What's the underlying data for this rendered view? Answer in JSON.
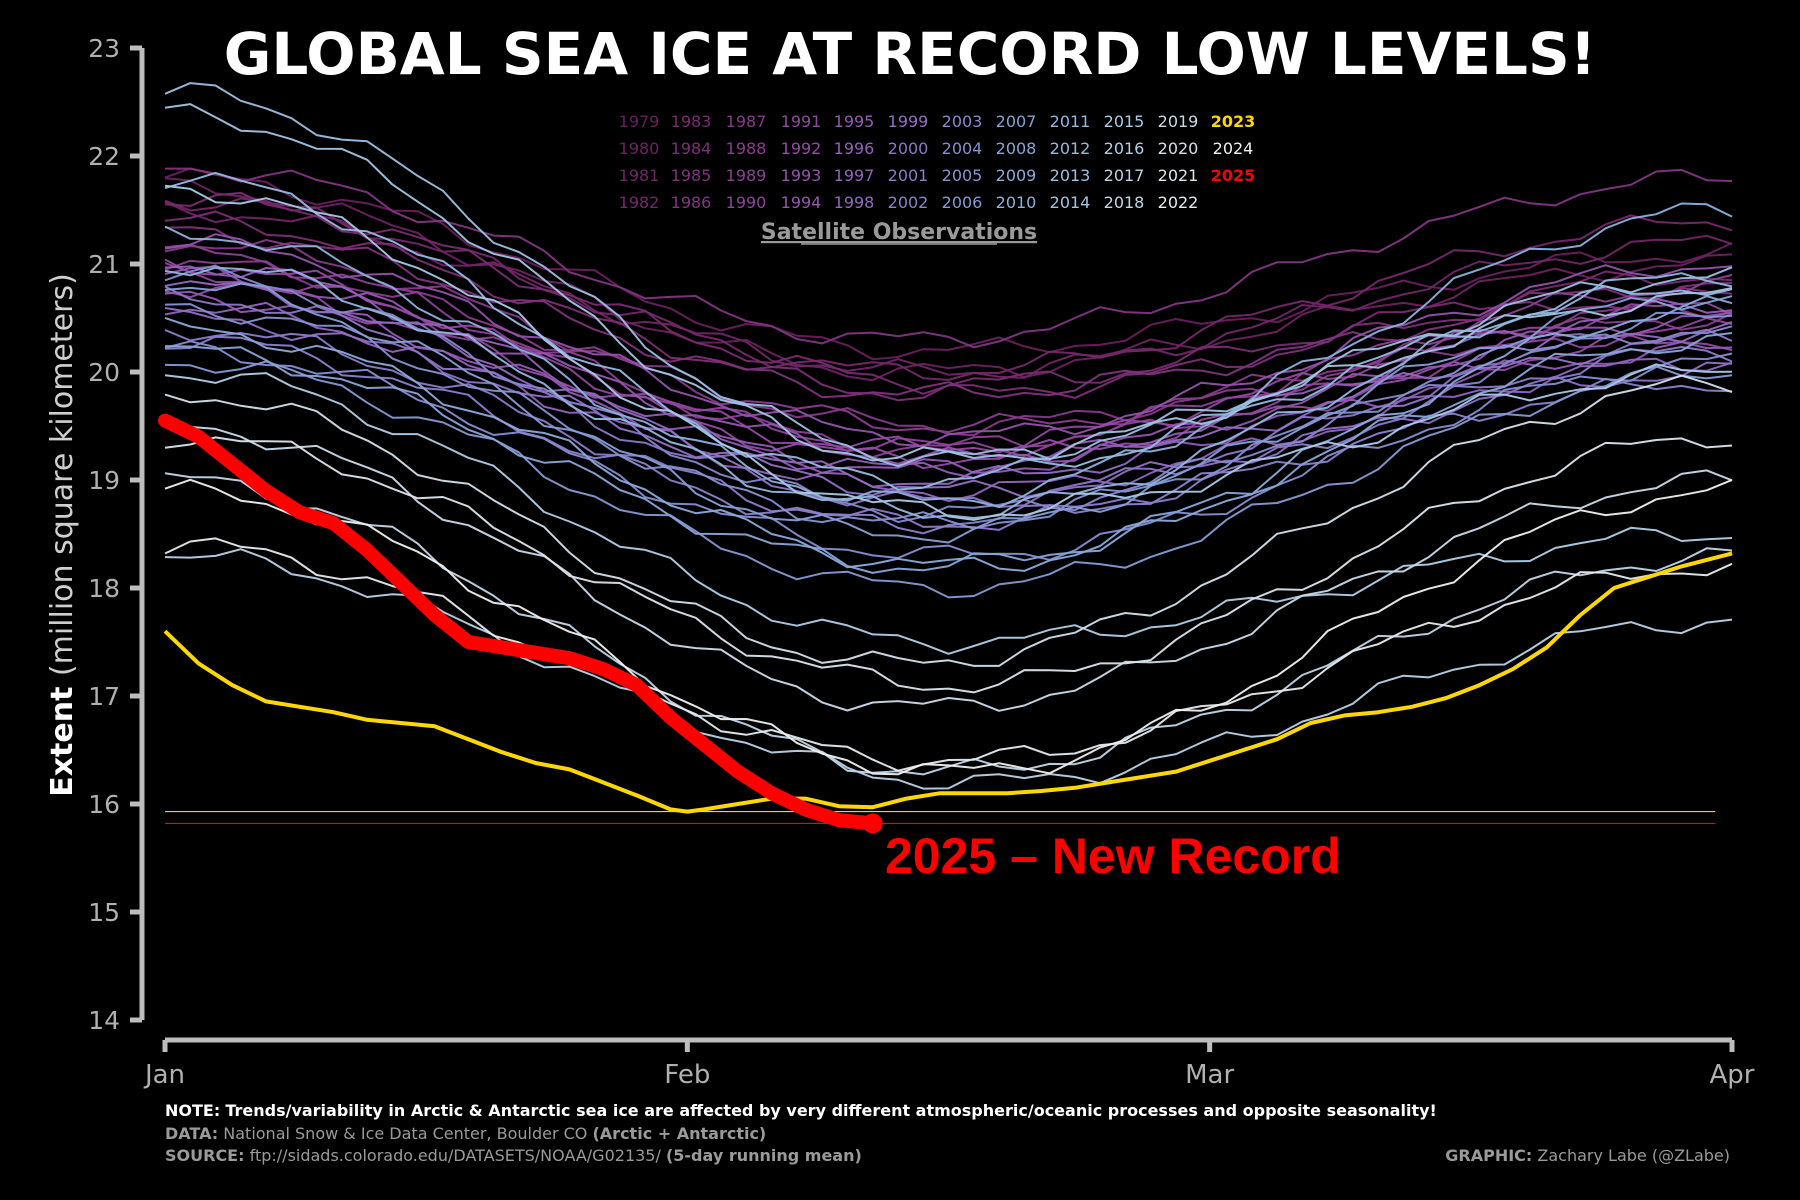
{
  "title": "GLOBAL SEA ICE AT RECORD LOW LEVELS!",
  "chart_data": {
    "type": "line",
    "title": "GLOBAL SEA ICE AT RECORD LOW LEVELS!",
    "ylabel_bold": "Extent",
    "ylabel_rest": "(million square kilometers)",
    "ylim": [
      14,
      23
    ],
    "yticks": [
      14,
      15,
      16,
      17,
      18,
      19,
      20,
      21,
      22,
      23
    ],
    "x_range_days": [
      0,
      90
    ],
    "x_ticks": [
      {
        "label": "Jan",
        "day": 0
      },
      {
        "label": "Feb",
        "day": 31
      },
      {
        "label": "Mar",
        "day": 62
      },
      {
        "label": "Apr",
        "day": 93
      }
    ],
    "legend_title": "Satellite Observations",
    "legend_placement": "top-center",
    "annotation": "2025 – New Record",
    "reference_lines": [
      {
        "y": 15.93,
        "color": "#FFD700"
      },
      {
        "y": 15.82,
        "color": "#FF0000"
      }
    ],
    "grid": false,
    "series_2025": {
      "name": "2025",
      "color": "#FF0000",
      "x": [
        0,
        2,
        4,
        6,
        8,
        10,
        12,
        14,
        16,
        18,
        20,
        22,
        24,
        26,
        28,
        30,
        32,
        34,
        36,
        38,
        40,
        42
      ],
      "y": [
        19.55,
        19.4,
        19.15,
        18.9,
        18.7,
        18.6,
        18.35,
        18.05,
        17.75,
        17.5,
        17.45,
        17.4,
        17.35,
        17.25,
        17.1,
        16.8,
        16.55,
        16.3,
        16.1,
        15.95,
        15.85,
        15.82
      ]
    },
    "series_2023": {
      "name": "2023",
      "color": "#FFD700",
      "x": [
        0,
        2,
        4,
        6,
        8,
        10,
        12,
        14,
        16,
        18,
        20,
        22,
        24,
        26,
        28,
        30,
        31,
        32,
        34,
        36,
        38,
        40,
        42,
        44,
        46,
        48,
        50,
        52,
        54,
        56,
        58,
        60,
        62,
        64,
        66,
        68,
        70,
        72,
        74,
        76,
        78,
        80,
        82,
        84,
        86,
        88,
        90,
        93
      ],
      "y": [
        17.6,
        17.3,
        17.1,
        16.95,
        16.9,
        16.85,
        16.78,
        16.75,
        16.72,
        16.6,
        16.48,
        16.38,
        16.32,
        16.2,
        16.08,
        15.95,
        15.93,
        15.95,
        16.0,
        16.05,
        16.05,
        15.98,
        15.97,
        16.05,
        16.1,
        16.1,
        16.1,
        16.12,
        16.15,
        16.2,
        16.25,
        16.3,
        16.4,
        16.5,
        16.6,
        16.75,
        16.82,
        16.85,
        16.9,
        16.98,
        17.1,
        17.25,
        17.45,
        17.75,
        18.0,
        18.1,
        18.2,
        18.32
      ]
    },
    "years": [
      {
        "year": "1979",
        "color": "#6a1f5e",
        "start": 21.8,
        "dip": 1.6,
        "min_day": 45,
        "end": 21.1
      },
      {
        "year": "1980",
        "color": "#6e2262",
        "start": 21.7,
        "dip": 1.7,
        "min_day": 44,
        "end": 21.0
      },
      {
        "year": "1981",
        "color": "#722567",
        "start": 21.5,
        "dip": 1.5,
        "min_day": 46,
        "end": 21.2
      },
      {
        "year": "1982",
        "color": "#76286c",
        "start": 21.6,
        "dip": 1.6,
        "min_day": 45,
        "end": 21.4
      },
      {
        "year": "1983",
        "color": "#7a2b72",
        "start": 21.6,
        "dip": 1.7,
        "min_day": 47,
        "end": 20.9
      },
      {
        "year": "1984",
        "color": "#7d2e78",
        "start": 21.4,
        "dip": 1.6,
        "min_day": 46,
        "end": 20.8
      },
      {
        "year": "1985",
        "color": "#81327e",
        "start": 21.3,
        "dip": 1.5,
        "min_day": 45,
        "end": 20.7
      },
      {
        "year": "1986",
        "color": "#843584",
        "start": 21.9,
        "dip": 1.6,
        "min_day": 44,
        "end": 21.8
      },
      {
        "year": "1987",
        "color": "#88398a",
        "start": 21.2,
        "dip": 1.7,
        "min_day": 46,
        "end": 20.6
      },
      {
        "year": "1988",
        "color": "#8b3c90",
        "start": 21.0,
        "dip": 1.5,
        "min_day": 47,
        "end": 20.5
      },
      {
        "year": "1989",
        "color": "#8e4096",
        "start": 21.1,
        "dip": 1.8,
        "min_day": 45,
        "end": 20.8
      },
      {
        "year": "1990",
        "color": "#90449c",
        "start": 20.9,
        "dip": 1.6,
        "min_day": 46,
        "end": 20.4
      },
      {
        "year": "1991",
        "color": "#9348a2",
        "start": 21.0,
        "dip": 1.7,
        "min_day": 44,
        "end": 20.6
      },
      {
        "year": "1992",
        "color": "#944ca7",
        "start": 20.8,
        "dip": 1.6,
        "min_day": 45,
        "end": 20.3
      },
      {
        "year": "1993",
        "color": "#9551ac",
        "start": 21.2,
        "dip": 1.8,
        "min_day": 46,
        "end": 21.0
      },
      {
        "year": "1994",
        "color": "#9555b1",
        "start": 20.9,
        "dip": 1.7,
        "min_day": 47,
        "end": 20.5
      },
      {
        "year": "1995",
        "color": "#955ab6",
        "start": 20.7,
        "dip": 1.6,
        "min_day": 45,
        "end": 20.2
      },
      {
        "year": "1996",
        "color": "#955fba",
        "start": 21.0,
        "dip": 1.9,
        "min_day": 44,
        "end": 20.6
      },
      {
        "year": "1997",
        "color": "#9464be",
        "start": 20.6,
        "dip": 1.7,
        "min_day": 46,
        "end": 20.1
      },
      {
        "year": "1998",
        "color": "#926ac2",
        "start": 20.8,
        "dip": 1.8,
        "min_day": 45,
        "end": 20.4
      },
      {
        "year": "1999",
        "color": "#9170c5",
        "start": 20.5,
        "dip": 1.6,
        "min_day": 47,
        "end": 20.0
      },
      {
        "year": "2000",
        "color": "#8f76c8",
        "start": 20.7,
        "dip": 1.9,
        "min_day": 45,
        "end": 20.3
      },
      {
        "year": "2001",
        "color": "#8d7ccb",
        "start": 20.4,
        "dip": 1.8,
        "min_day": 46,
        "end": 20.2
      },
      {
        "year": "2002",
        "color": "#8b82cd",
        "start": 20.3,
        "dip": 1.7,
        "min_day": 44,
        "end": 19.9
      },
      {
        "year": "2003",
        "color": "#8988cf",
        "start": 20.9,
        "dip": 2.2,
        "min_day": 46,
        "end": 20.4
      },
      {
        "year": "2004",
        "color": "#878ed1",
        "start": 20.2,
        "dip": 1.9,
        "min_day": 47,
        "end": 20.1
      },
      {
        "year": "2005",
        "color": "#8694d3",
        "start": 20.6,
        "dip": 2.0,
        "min_day": 45,
        "end": 20.5
      },
      {
        "year": "2006",
        "color": "#869ad5",
        "start": 20.1,
        "dip": 2.1,
        "min_day": 46,
        "end": 20.0
      },
      {
        "year": "2007",
        "color": "#86a0d7",
        "start": 20.8,
        "dip": 2.3,
        "min_day": 44,
        "end": 20.7
      },
      {
        "year": "2008",
        "color": "#88a6d9",
        "start": 20.2,
        "dip": 2.0,
        "min_day": 45,
        "end": 20.3
      },
      {
        "year": "2009",
        "color": "#8aabdb",
        "start": 20.4,
        "dip": 2.2,
        "min_day": 47,
        "end": 20.6
      },
      {
        "year": "2010",
        "color": "#8db1dd",
        "start": 21.3,
        "dip": 2.5,
        "min_day": 45,
        "end": 21.5
      },
      {
        "year": "2011",
        "color": "#91b6df",
        "start": 21.0,
        "dip": 2.3,
        "min_day": 46,
        "end": 20.9
      },
      {
        "year": "2012",
        "color": "#96bbe1",
        "start": 21.8,
        "dip": 2.8,
        "min_day": 44,
        "end": 20.8
      },
      {
        "year": "2013",
        "color": "#9bc0e3",
        "start": 22.6,
        "dip": 3.4,
        "min_day": 46,
        "end": 20.9
      },
      {
        "year": "2014",
        "color": "#a1c5e4",
        "start": 22.4,
        "dip": 3.2,
        "min_day": 45,
        "end": 20.7
      },
      {
        "year": "2015",
        "color": "#a8cae6",
        "start": 21.7,
        "dip": 3.0,
        "min_day": 47,
        "end": 20.0
      },
      {
        "year": "2016",
        "color": "#b0cfe7",
        "start": 20.0,
        "dip": 2.5,
        "min_day": 46,
        "end": 18.5
      },
      {
        "year": "2017",
        "color": "#b8d3e8",
        "start": 18.3,
        "dip": 2.1,
        "min_day": 48,
        "end": 17.7
      },
      {
        "year": "2018",
        "color": "#c0d7e9",
        "start": 19.0,
        "dip": 2.7,
        "min_day": 46,
        "end": 18.3
      },
      {
        "year": "2019",
        "color": "#c9dbea",
        "start": 19.5,
        "dip": 2.6,
        "min_day": 45,
        "end": 19.0
      },
      {
        "year": "2020",
        "color": "#d2e0eb",
        "start": 19.8,
        "dip": 2.5,
        "min_day": 44,
        "end": 19.9
      },
      {
        "year": "2021",
        "color": "#dce5ec",
        "start": 19.4,
        "dip": 2.3,
        "min_day": 47,
        "end": 19.4
      },
      {
        "year": "2022",
        "color": "#e6ebee",
        "start": 18.4,
        "dip": 2.0,
        "min_day": 46,
        "end": 18.2
      },
      {
        "year": "2023",
        "color": "#FFD700"
      },
      {
        "year": "2024",
        "color": "#f0f0f0",
        "start": 18.9,
        "dip": 2.6,
        "min_day": 47,
        "end": 18.9
      },
      {
        "year": "2025",
        "color": "#FF0000"
      }
    ]
  },
  "footer": {
    "note_label": "NOTE:",
    "note_text": "Trends/variability in Arctic & Antarctic sea ice are affected by very different atmospheric/oceanic processes and opposite seasonality!",
    "data_label": "DATA:",
    "data_text": "National Snow & Ice Data Center, Boulder CO",
    "data_bold": "(Arctic + Antarctic)",
    "source_label": "SOURCE:",
    "source_text": "ftp://sidads.colorado.edu/DATASETS/NOAA/G02135/",
    "source_bold": "(5-day running mean)",
    "graphic_label": "GRAPHIC:",
    "graphic_text": "Zachary Labe (@ZLabe)"
  }
}
